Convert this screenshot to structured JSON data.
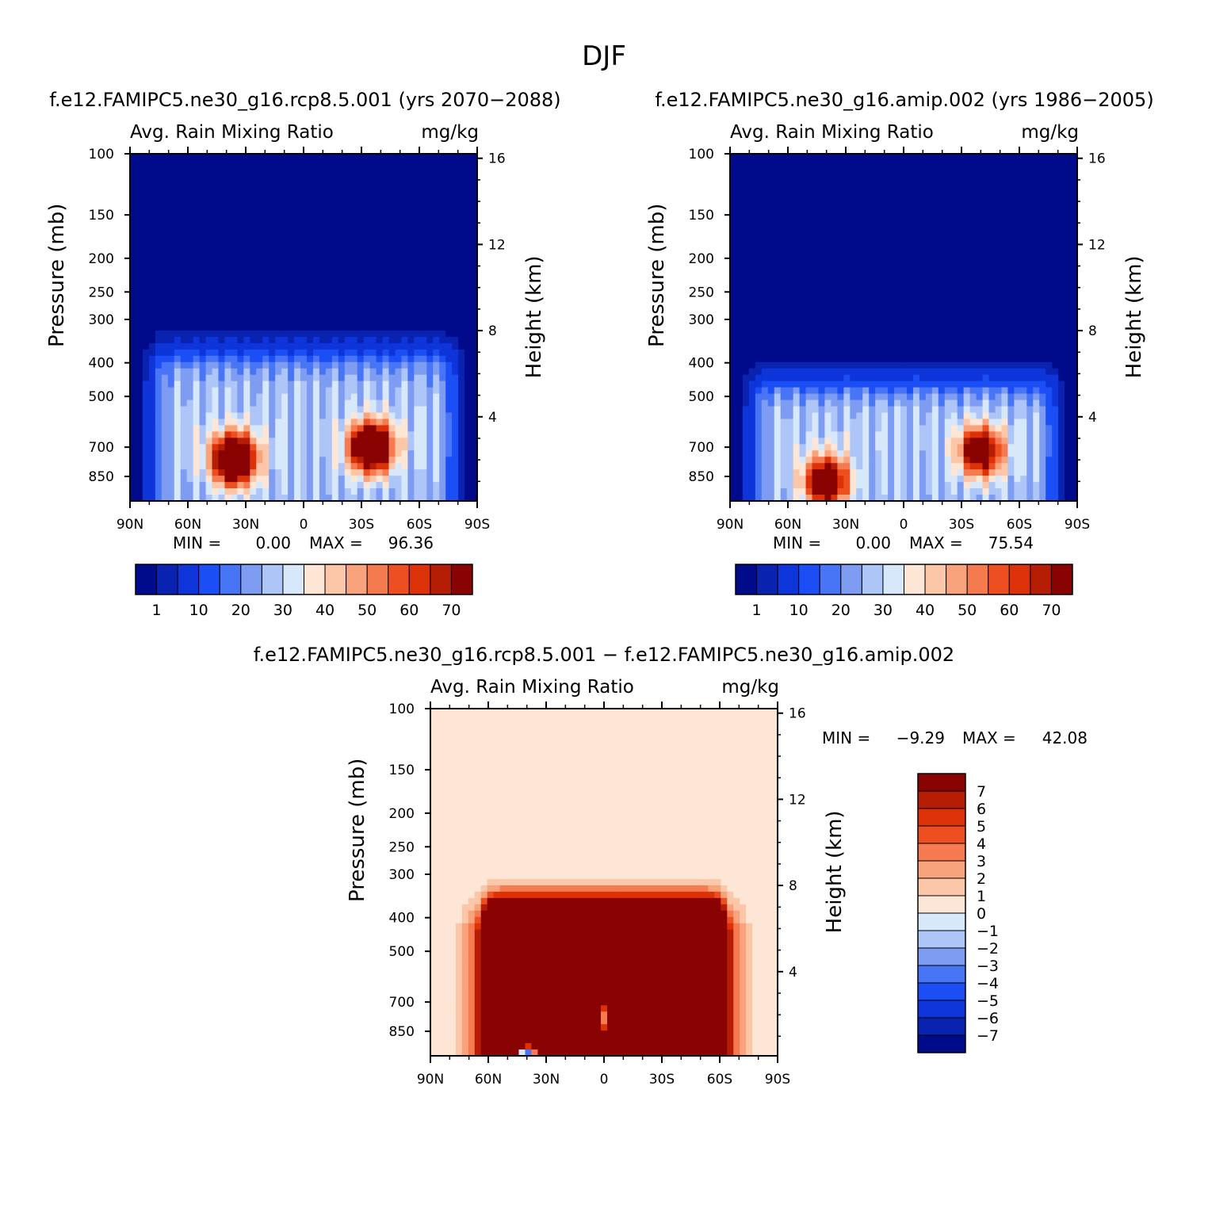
{
  "figure": {
    "title": "DJF",
    "difference_title": "f.e12.FAMIPC5.ne30_g16.rcp8.5.001 − f.e12.FAMIPC5.ne30_g16.amip.002"
  },
  "colors": {
    "abs_palette": [
      "#000b8b",
      "#0a22b0",
      "#0d35d9",
      "#1b4ff5",
      "#4775f5",
      "#7e9df2",
      "#adc5f7",
      "#d7e8fb",
      "#fde6d5",
      "#fbc7a8",
      "#f9a37c",
      "#f57a4f",
      "#ee4f21",
      "#dd3208",
      "#b51d05",
      "#8a0303"
    ],
    "diff_palette": [
      "#000b8b",
      "#0a22b0",
      "#0d35d9",
      "#1b4ff5",
      "#4775f5",
      "#7e9df2",
      "#adc5f7",
      "#d7e8fb",
      "#fde6d5",
      "#fbc7a8",
      "#f9a37c",
      "#f57a4f",
      "#ee4f21",
      "#dd3208",
      "#b51d05",
      "#8a0303"
    ],
    "frame": "#000000"
  },
  "chart_data": [
    {
      "type": "heatmap",
      "title": "f.e12.FAMIPC5.ne30_g16.rcp8.5.001 (yrs 2070−2088)",
      "left_string": "Avg. Rain Mixing Ratio",
      "right_string": "mg/kg",
      "xlabel": "",
      "ylabel": "Pressure (mb)",
      "y2label": "Height (km)",
      "x_ticks": [
        "90N",
        "60N",
        "30N",
        "0",
        "30S",
        "60S",
        "90S"
      ],
      "x_tick_values": [
        90,
        60,
        30,
        0,
        -30,
        -60,
        -90
      ],
      "y_ticks": [
        100,
        150,
        200,
        250,
        300,
        400,
        500,
        700,
        850
      ],
      "y2_ticks": [
        16,
        12,
        8,
        4
      ],
      "ylim": [
        100,
        1000
      ],
      "y_scale": "log",
      "min_label": "MIN =",
      "min_value": "0.00",
      "max_label": "MAX =",
      "max_value": "96.36",
      "colorbar": {
        "orientation": "horizontal",
        "labels": [
          "1",
          "10",
          "20",
          "30",
          "40",
          "50",
          "60",
          "70"
        ]
      },
      "field": {
        "top_pressure": 370,
        "centers": [
          {
            "lat": 36,
            "p": 760,
            "value": 96.36
          },
          {
            "lat": -35,
            "p": 700,
            "value": 90
          }
        ]
      }
    },
    {
      "type": "heatmap",
      "title": "f.e12.FAMIPC5.ne30_g16.amip.002 (yrs 1986−2005)",
      "left_string": "Avg. Rain Mixing Ratio",
      "right_string": "mg/kg",
      "xlabel": "",
      "ylabel": "Pressure (mb)",
      "y2label": "Height (km)",
      "x_ticks": [
        "90N",
        "60N",
        "30N",
        "0",
        "30S",
        "60S",
        "90S"
      ],
      "x_tick_values": [
        90,
        60,
        30,
        0,
        -30,
        -60,
        -90
      ],
      "y_ticks": [
        100,
        150,
        200,
        250,
        300,
        400,
        500,
        700,
        850
      ],
      "y2_ticks": [
        16,
        12,
        8,
        4
      ],
      "ylim": [
        100,
        1000
      ],
      "y_scale": "log",
      "min_label": "MIN =",
      "min_value": "0.00",
      "max_label": "MAX =",
      "max_value": "75.54",
      "colorbar": {
        "orientation": "horizontal",
        "labels": [
          "1",
          "10",
          "20",
          "30",
          "40",
          "50",
          "60",
          "70"
        ]
      },
      "field": {
        "top_pressure": 450,
        "centers": [
          {
            "lat": 40,
            "p": 880,
            "value": 75.54
          },
          {
            "lat": -40,
            "p": 720,
            "value": 68
          }
        ]
      }
    },
    {
      "type": "heatmap",
      "title": "",
      "left_string": "Avg. Rain Mixing Ratio",
      "right_string": "mg/kg",
      "xlabel": "",
      "ylabel": "Pressure (mb)",
      "y2label": "Height (km)",
      "x_ticks": [
        "90N",
        "60N",
        "30N",
        "0",
        "30S",
        "60S",
        "90S"
      ],
      "x_tick_values": [
        90,
        60,
        30,
        0,
        -30,
        -60,
        -90
      ],
      "y_ticks": [
        100,
        150,
        200,
        250,
        300,
        400,
        500,
        700,
        850
      ],
      "y2_ticks": [
        16,
        12,
        8,
        4
      ],
      "ylim": [
        100,
        1000
      ],
      "y_scale": "log",
      "min_label": "MIN =",
      "min_value": "−9.29",
      "max_label": "MAX =",
      "max_value": "42.08",
      "colorbar": {
        "orientation": "vertical",
        "labels": [
          "7",
          "6",
          "5",
          "4",
          "3",
          "2",
          "1",
          "0",
          "−1",
          "−2",
          "−3",
          "−4",
          "−5",
          "−6",
          "−7"
        ]
      },
      "field": {
        "top_pressure": 380,
        "max_value": 42.08,
        "min_value": -9.29
      }
    }
  ]
}
